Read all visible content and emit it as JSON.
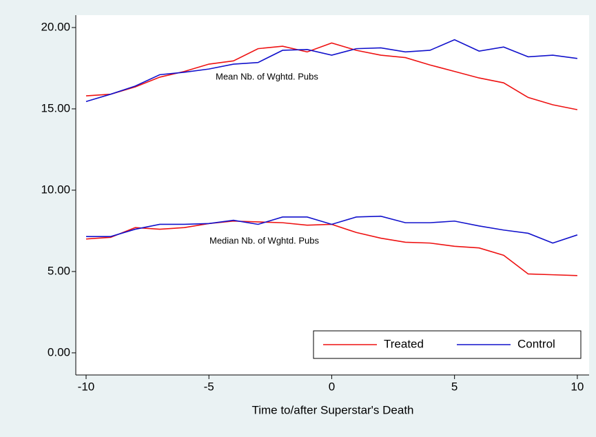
{
  "chart_data": {
    "type": "line",
    "x_label": "Time to/after Superstar's Death",
    "x": [
      -10,
      -9,
      -8,
      -7,
      -6,
      -5,
      -4,
      -3,
      -2,
      -1,
      0,
      1,
      2,
      3,
      4,
      5,
      6,
      7,
      8,
      9,
      10
    ],
    "series": [
      {
        "name": "Treated",
        "color": "#ee1111",
        "values": [
          15.8,
          15.9,
          16.35,
          16.95,
          17.3,
          17.75,
          17.95,
          18.7,
          18.85,
          18.5,
          19.05,
          18.6,
          18.3,
          18.15,
          17.7,
          17.3,
          16.9,
          16.6,
          15.7,
          15.25,
          14.95
        ]
      },
      {
        "name": "Control",
        "color": "#1111cc",
        "values": [
          15.45,
          15.9,
          16.4,
          17.1,
          17.25,
          17.45,
          17.75,
          17.85,
          18.6,
          18.65,
          18.3,
          18.7,
          18.75,
          18.5,
          18.6,
          19.25,
          18.55,
          18.8,
          18.2,
          18.3,
          18.1
        ]
      },
      {
        "color": "#ee1111",
        "values": [
          7.0,
          7.1,
          7.7,
          7.6,
          7.7,
          7.95,
          8.1,
          8.05,
          8.0,
          7.85,
          7.9,
          7.4,
          7.05,
          6.8,
          6.75,
          6.55,
          6.45,
          6.0,
          4.85,
          4.8,
          4.75
        ]
      },
      {
        "color": "#1111cc",
        "values": [
          7.15,
          7.15,
          7.6,
          7.9,
          7.9,
          7.95,
          8.15,
          7.9,
          8.35,
          8.35,
          7.9,
          8.35,
          8.4,
          8.0,
          8.0,
          8.1,
          7.8,
          7.55,
          7.35,
          6.75,
          7.25
        ]
      }
    ],
    "annotations": [
      "Mean Nb. of Wghtd. Pubs",
      "Median Nb. of Wghtd. Pubs"
    ],
    "xlim": [
      -10.42,
      10.48
    ],
    "ylim": [
      -1.36,
      20.76
    ],
    "xticks": [
      -10,
      -5,
      0,
      5,
      10
    ],
    "yticks": [
      {
        "value": 0,
        "label": "0.00"
      },
      {
        "value": 5,
        "label": "5.00"
      },
      {
        "value": 10,
        "label": "10.00"
      },
      {
        "value": 15,
        "label": "15.00"
      },
      {
        "value": 20,
        "label": "20.00"
      }
    ],
    "grid": false,
    "legend_position": "bottom-right"
  }
}
